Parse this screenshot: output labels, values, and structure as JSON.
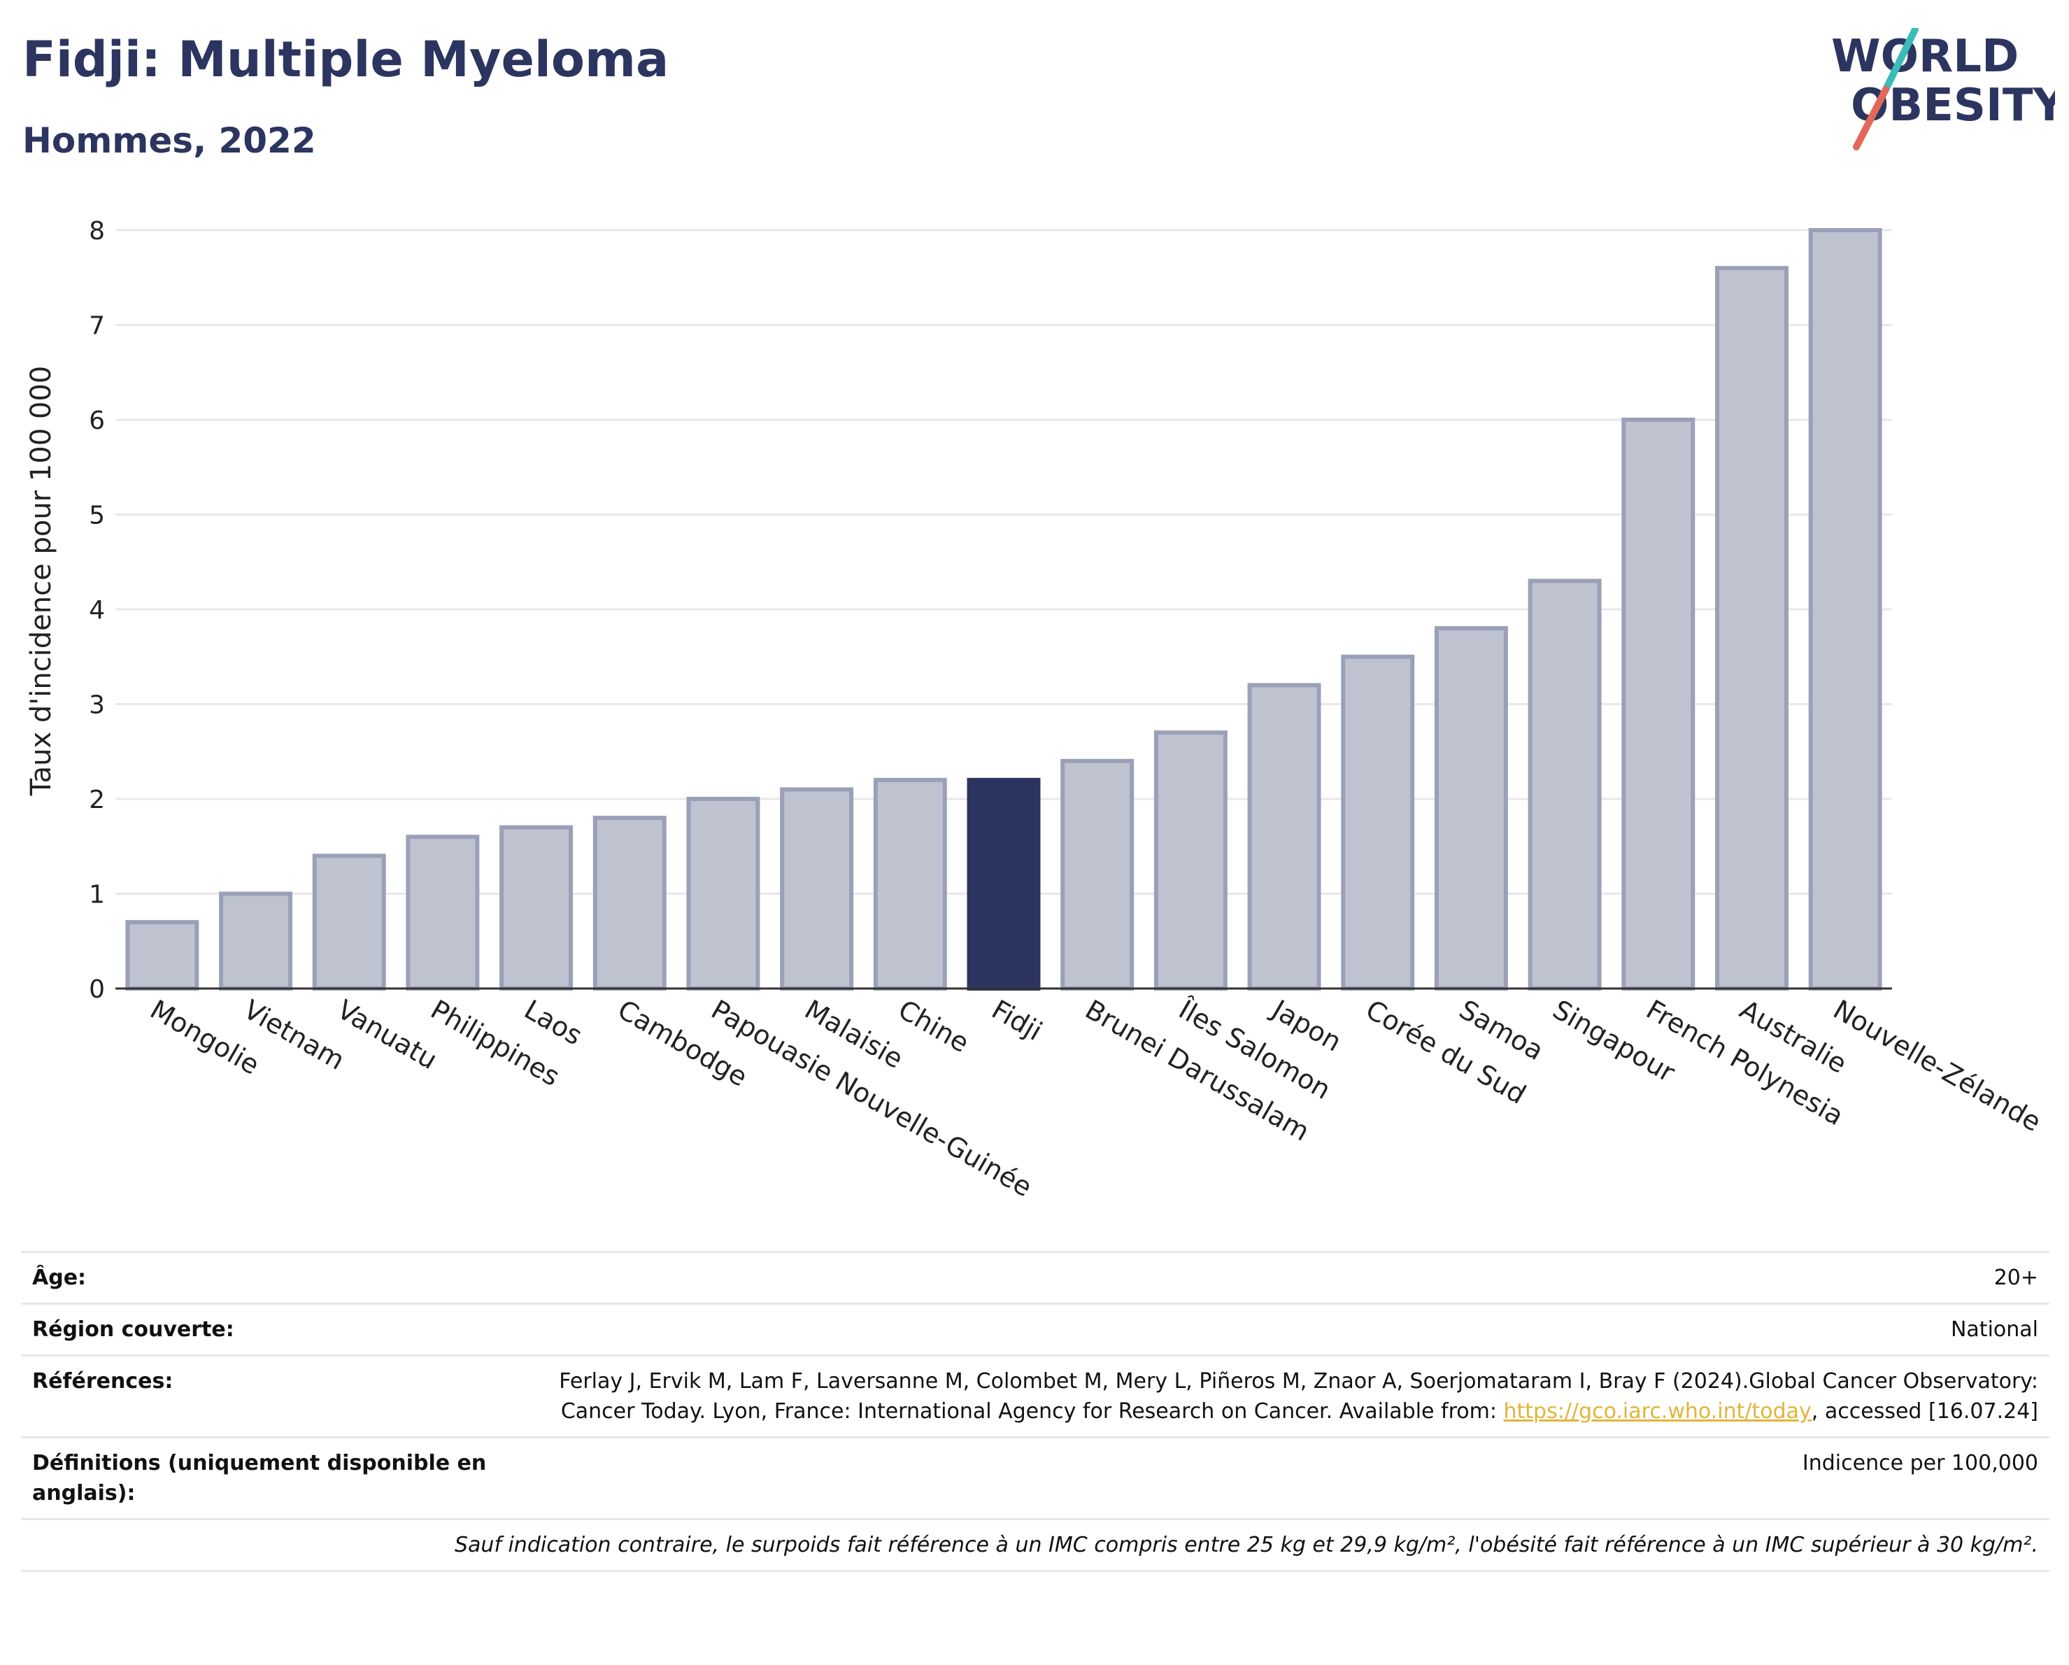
{
  "header": {
    "title": "Fidji: Multiple Myeloma",
    "subtitle": "Hommes, 2022"
  },
  "logo": {
    "line1": "WORLD",
    "line2": "OBESITY",
    "colors": {
      "text": "#2c3560",
      "slash_teal": "#3bbcb8",
      "slash_coral": "#e4685a"
    }
  },
  "chart_data": {
    "type": "bar",
    "title": "",
    "xlabel": "",
    "ylabel": "Taux d'incidence pour 100 000",
    "ylim": [
      0,
      8.2
    ],
    "yticks": [
      0,
      1,
      2,
      3,
      4,
      5,
      6,
      7,
      8
    ],
    "grid": true,
    "highlight_category": "Fidji",
    "colors": {
      "bar": "#bfc3d0",
      "bar_border": "#9aa0b8",
      "highlight": "#2c3560",
      "grid": "#e8e8ec",
      "axis": "#333333"
    },
    "categories": [
      "Mongolie",
      "Vietnam",
      "Vanuatu",
      "Philippines",
      "Laos",
      "Cambodge",
      "Papouasie Nouvelle-Guinée",
      "Malaisie",
      "Chine",
      "Fidji",
      "Brunei Darussalam",
      "Îles Salomon",
      "Japon",
      "Corée du Sud",
      "Samoa",
      "Singapour",
      "French Polynesia",
      "Australie",
      "Nouvelle-Zélande"
    ],
    "values": [
      0.7,
      1.0,
      1.4,
      1.6,
      1.7,
      1.8,
      2.0,
      2.1,
      2.2,
      2.2,
      2.4,
      2.7,
      3.2,
      3.5,
      3.8,
      4.3,
      6.0,
      7.6,
      8.0
    ]
  },
  "info_table": {
    "age_label": "Âge:",
    "age_value": "20+",
    "region_label": "Région couverte:",
    "region_value": "National",
    "references_label": "Références:",
    "references_text_1": "Ferlay J, Ervik M, Lam F, Laversanne M, Colombet M, Mery L, Piñeros M, Znaor A, Soerjomataram I, Bray F (2024).Global Cancer Observatory: Cancer Today. Lyon, France: International Agency for Research on Cancer. Available from: ",
    "references_link": "https://gco.iarc.who.int/today",
    "references_text_2": ", accessed [16.07.24]",
    "definitions_label": "Définitions (uniquement disponible en anglais):",
    "definitions_value": "Indicence per 100,000",
    "note": "Sauf indication contraire, le surpoids fait référence à un IMC compris entre 25 kg et 29,9 kg/m², l'obésité fait référence à un IMC supérieur à 30 kg/m²."
  }
}
